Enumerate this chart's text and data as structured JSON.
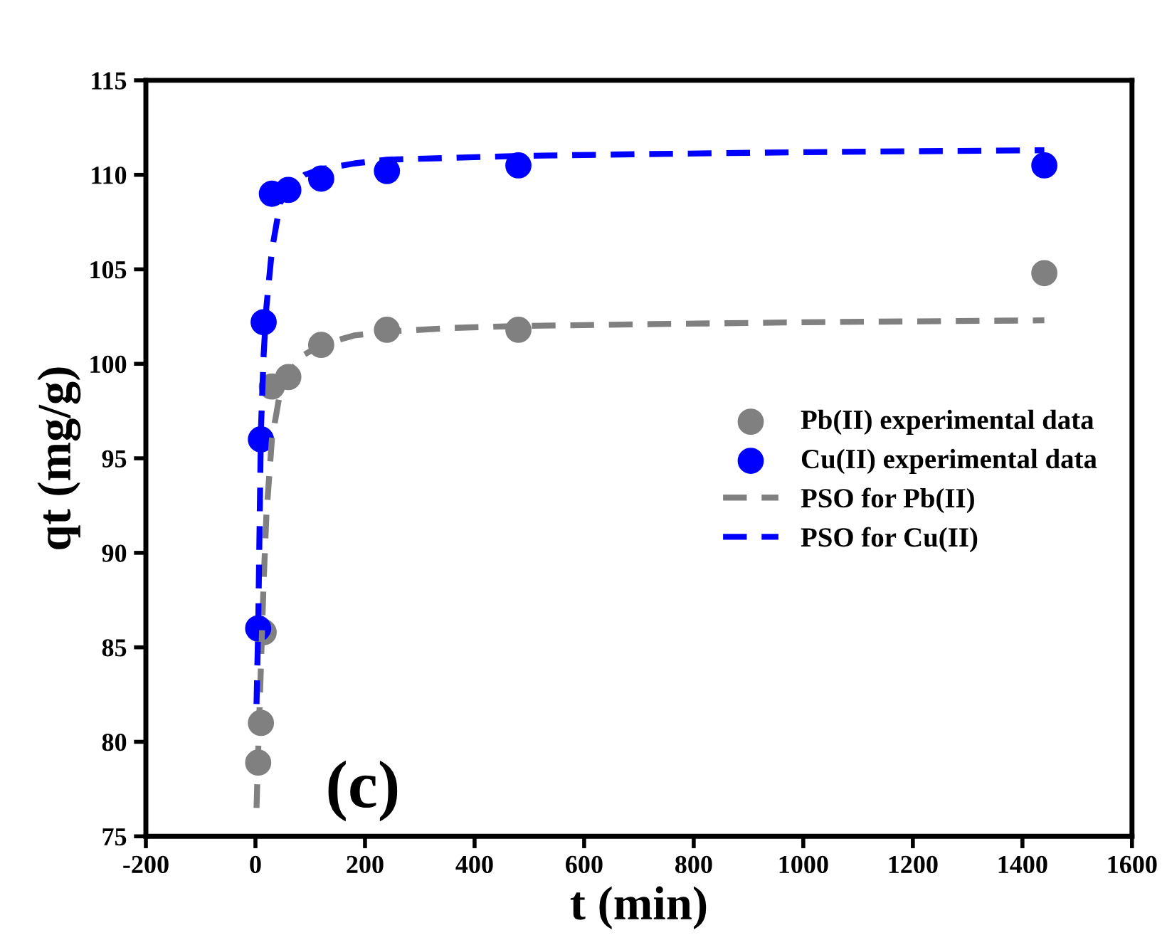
{
  "chart_data": {
    "type": "scatter",
    "xlabel": "t (min)",
    "ylabel": "qt (mg/g)",
    "xlim": [
      -200,
      1600
    ],
    "ylim": [
      75,
      115
    ],
    "xticks": [
      -200,
      0,
      200,
      400,
      600,
      800,
      1000,
      1200,
      1400,
      1600
    ],
    "yticks": [
      75,
      80,
      85,
      90,
      95,
      100,
      105,
      110,
      115
    ],
    "grid": false,
    "legend": "right",
    "marker": "circle",
    "annotations": [
      "(c)"
    ],
    "series": [
      {
        "name": "Pb(II) experimental data",
        "color": "#808080",
        "x": [
          5,
          10,
          15,
          30,
          60,
          120,
          240,
          480,
          1440
        ],
        "values": [
          78.9,
          81,
          85.8,
          98.8,
          99.3,
          101,
          101.8,
          101.8,
          104.8
        ]
      },
      {
        "name": "Cu(II) experimental data",
        "color": "#0000ff",
        "x": [
          5,
          10,
          15,
          30,
          60,
          120,
          240,
          480,
          1440
        ],
        "values": [
          86,
          96,
          102.2,
          109,
          109.2,
          109.8,
          110.2,
          110.5,
          110.5
        ]
      },
      {
        "name": "PSO for Pb(II)",
        "type": "line",
        "line_style": "dashed",
        "marker": "none",
        "color": "#808080",
        "x": [
          2,
          5,
          10,
          15,
          20,
          30,
          45,
          60,
          90,
          120,
          180,
          240,
          360,
          480,
          720,
          1000,
          1440
        ],
        "values": [
          76.5,
          79.5,
          84,
          88.5,
          92,
          96,
          98.5,
          99.5,
          100.5,
          101,
          101.5,
          101.7,
          101.9,
          102,
          102.1,
          102.2,
          102.3
        ]
      },
      {
        "name": "PSO for Cu(II)",
        "type": "line",
        "line_style": "dashed",
        "marker": "none",
        "color": "#0000ff",
        "x": [
          2,
          5,
          10,
          15,
          20,
          30,
          45,
          60,
          90,
          120,
          180,
          240,
          360,
          480,
          720,
          1000,
          1440
        ],
        "values": [
          82,
          86,
          96.5,
          100.5,
          103,
          106,
          108.5,
          109.3,
          110,
          110.3,
          110.6,
          110.8,
          110.9,
          111,
          111.1,
          111.2,
          111.3
        ]
      }
    ]
  }
}
